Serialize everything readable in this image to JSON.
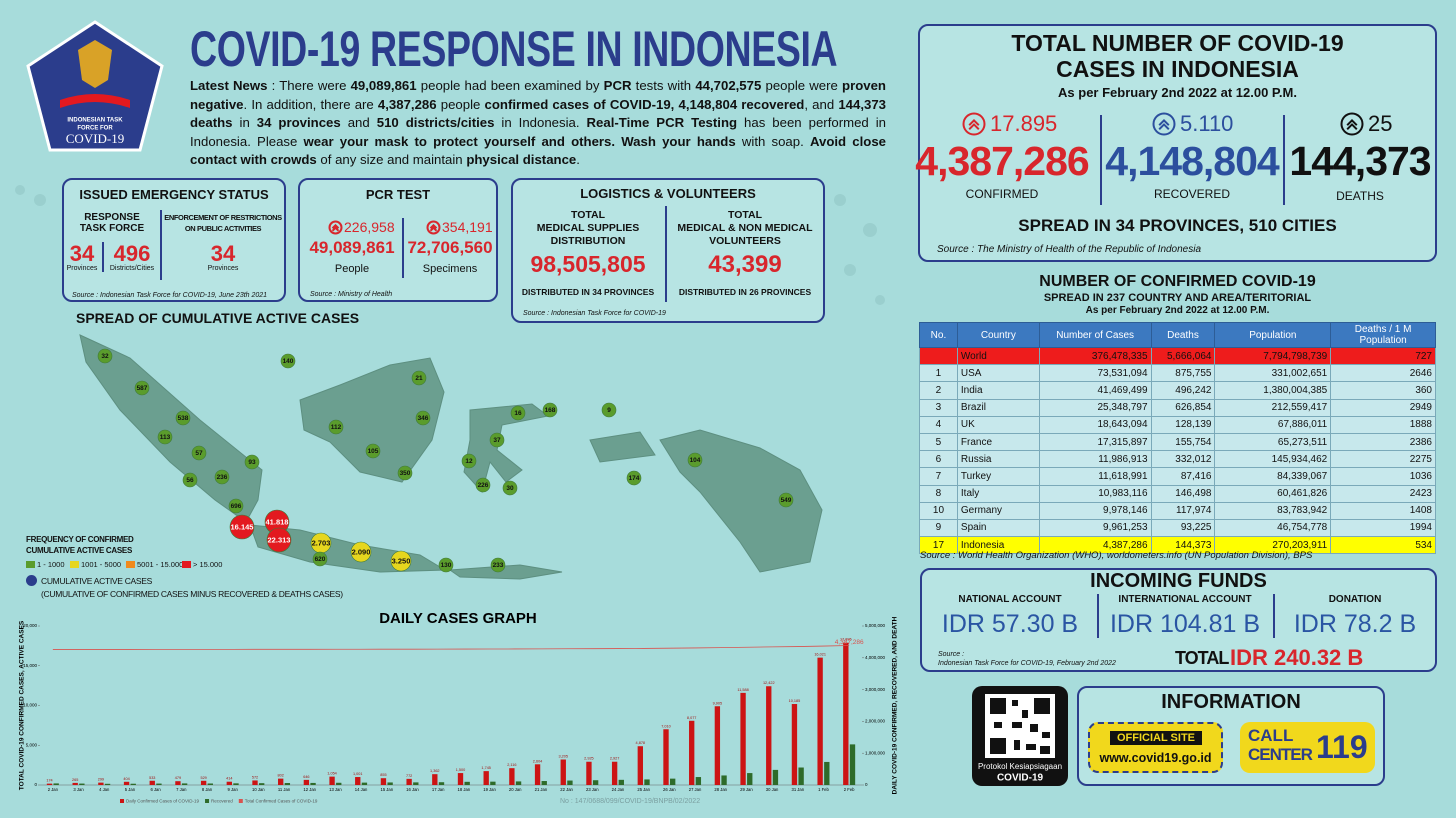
{
  "header": {
    "logo_lines": [
      "INDONESIAN TASK",
      "FORCE FOR",
      "COVID-19"
    ],
    "title": "COVID-19 RESPONSE IN INDONESIA",
    "news": [
      {
        "text": "Latest News",
        "bold": true
      },
      {
        "text": " : There were "
      },
      {
        "text": "49,089,861",
        "bold": true
      },
      {
        "text": " people had been examined by "
      },
      {
        "text": "PCR",
        "bold": true
      },
      {
        "text": " tests with "
      },
      {
        "text": "44,702,575",
        "bold": true
      },
      {
        "text": " people were "
      },
      {
        "text": "proven negative",
        "bold": true
      },
      {
        "text": ". In addition, there are "
      },
      {
        "text": "4,387,286",
        "bold": true
      },
      {
        "text": " people "
      },
      {
        "text": "confirmed cases of COVID-19, 4,148,804 recovered",
        "bold": true
      },
      {
        "text": ", and "
      },
      {
        "text": "144,373 deaths",
        "bold": true
      },
      {
        "text": " in "
      },
      {
        "text": "34 provinces",
        "bold": true
      },
      {
        "text": " and "
      },
      {
        "text": "510 districts/cities",
        "bold": true
      },
      {
        "text": " in Indonesia. "
      },
      {
        "text": "Real-Time PCR Testing",
        "bold": true
      },
      {
        "text": " has been performed in Indonesia. Please "
      },
      {
        "text": "wear your mask to protect yourself and others. Wash your hands",
        "bold": true
      },
      {
        "text": " with soap. "
      },
      {
        "text": "Avoid close contact with crowds",
        "bold": true
      },
      {
        "text": " of any size and maintain "
      },
      {
        "text": "physical distance",
        "bold": true
      },
      {
        "text": "."
      }
    ]
  },
  "emergency": {
    "title": "ISSUED EMERGENCY STATUS",
    "response_title": [
      "RESPONSE",
      "TASK FORCE"
    ],
    "response_items": [
      {
        "value": "34",
        "label": "Provinces"
      },
      {
        "value": "496",
        "label": "Districts/Cities"
      }
    ],
    "restriction_title": [
      "ENFORCEMENT OF RESTRICTIONS",
      "ON PUBLIC ACTIVITIES"
    ],
    "restriction_item": {
      "value": "34",
      "label": "Provinces"
    },
    "source": "Source : Indonesian Task Force for COVID-19, June 23th 2021"
  },
  "pcr": {
    "title": "PCR TEST",
    "items": [
      {
        "delta": "226,958",
        "value": "49,089,861",
        "label": "People"
      },
      {
        "delta": "354,191",
        "value": "72,706,560",
        "label": "Specimens"
      }
    ],
    "source": "Source : Ministry of Health"
  },
  "logistics": {
    "title": "LOGISTICS & VOLUNTEERS",
    "items": [
      {
        "title": [
          "TOTAL",
          "MEDICAL SUPPLIES",
          "DISTRIBUTION"
        ],
        "value": "98,505,805",
        "note": "DISTRIBUTED IN 34 PROVINCES"
      },
      {
        "title": [
          "TOTAL",
          "MEDICAL & NON MEDICAL",
          "VOLUNTEERS"
        ],
        "value": "43,399",
        "note": "DISTRIBUTED IN 26 PROVINCES"
      }
    ],
    "source": "Source : Indonesian Task Force for COVID-19"
  },
  "total": {
    "title": [
      "TOTAL NUMBER OF COVID-19",
      "CASES IN INDONESIA"
    ],
    "subtitle": "As per February 2nd 2022 at 12.00 P.M.",
    "stats": [
      {
        "delta": "17.895",
        "value": "4,387,286",
        "label": "CONFIRMED",
        "color": "#d8262c"
      },
      {
        "delta": "5.110",
        "value": "4,148,804",
        "label": "RECOVERED",
        "color": "#2c4f9e"
      },
      {
        "delta": "25",
        "value": "144,373",
        "label": "DEATHS",
        "color": "#111111"
      }
    ],
    "spread": "SPREAD IN 34 PROVINCES, 510 CITIES",
    "source": "Source : The Ministry of Health of the Republic of Indonesia"
  },
  "world_table": {
    "title": "NUMBER OF CONFIRMED COVID-19",
    "subtitle": "SPREAD IN 237 COUNTRY AND AREA/TERITORIAL",
    "date": "As per February 2nd 2022 at 12.00 P.M.",
    "columns": [
      "No.",
      "Country",
      "Number of Cases",
      "Deaths",
      "Population",
      "Deaths / 1 M Population"
    ],
    "rows": [
      {
        "cells": [
          null,
          "World",
          "376,478,335",
          "5,666,064",
          "7,794,798,739",
          "727"
        ],
        "color": "#ee1c1c"
      },
      {
        "cells": [
          "1",
          "USA",
          "73,531,094",
          "875,755",
          "331,002,651",
          "2646"
        ]
      },
      {
        "cells": [
          "2",
          "India",
          "41,469,499",
          "496,242",
          "1,380,004,385",
          "360"
        ]
      },
      {
        "cells": [
          "3",
          "Brazil",
          "25,348,797",
          "626,854",
          "212,559,417",
          "2949"
        ]
      },
      {
        "cells": [
          "4",
          "UK",
          "18,643,094",
          "128,139",
          "67,886,011",
          "1888"
        ]
      },
      {
        "cells": [
          "5",
          "France",
          "17,315,897",
          "155,754",
          "65,273,511",
          "2386"
        ]
      },
      {
        "cells": [
          "6",
          "Russia",
          "11,986,913",
          "332,012",
          "145,934,462",
          "2275"
        ]
      },
      {
        "cells": [
          "7",
          "Turkey",
          "11,618,991",
          "87,416",
          "84,339,067",
          "1036"
        ]
      },
      {
        "cells": [
          "8",
          "Italy",
          "10,983,116",
          "146,498",
          "60,461,826",
          "2423"
        ]
      },
      {
        "cells": [
          "10",
          "Germany",
          "9,978,146",
          "117,974",
          "83,783,942",
          "1408"
        ]
      },
      {
        "cells": [
          "9",
          "Spain",
          "9,961,253",
          "93,225",
          "46,754,778",
          "1994"
        ]
      },
      {
        "cells": [
          "17",
          "Indonesia",
          "4,387,286",
          "144,373",
          "270,203,911",
          "534"
        ],
        "color": "#ffff00"
      }
    ],
    "source": "Source : World Health Organization (WHO), worldometers.info (UN Population Division), BPS"
  },
  "funds": {
    "title": "INCOMING FUNDS",
    "accounts": [
      {
        "label": "NATIONAL ACCOUNT",
        "value": "IDR 57.30 B"
      },
      {
        "label": "INTERNATIONAL ACCOUNT",
        "value": "IDR 104.81 B"
      },
      {
        "label": "DONATION",
        "value": "IDR 78.2 B"
      }
    ],
    "source": [
      "Source :",
      "Indonesian Task Force for COVID-19, February 2nd 2022"
    ],
    "total_label": "TOTAL",
    "total_value": "IDR 240.32 B"
  },
  "qr": {
    "lines": [
      "Protokol Kesiapsiagaan",
      "COVID-19"
    ]
  },
  "information": {
    "title": "INFORMATION",
    "site_label": "OFFICIAL SITE",
    "site_url": "www.covid19.go.id",
    "call_lines": [
      "CALL",
      "CENTER"
    ],
    "call_number": "119"
  },
  "map": {
    "title": "SPREAD OF CUMULATIVE ACTIVE CASES",
    "legend_title": [
      "FREQUENCY OF CONFIRMED",
      "CUMULATIVE ACTIVE CASES"
    ],
    "legend": [
      {
        "label": "1 - 1000",
        "color": "#5a9c2c"
      },
      {
        "label": "1001 - 5000",
        "color": "#e6d61e"
      },
      {
        "label": "5001 - 15.000",
        "color": "#f08a1c"
      },
      {
        "label": "> 15.000",
        "color": "#e3191f"
      }
    ],
    "legend_note": [
      "CUMULATIVE ACTIVE CASES",
      "(CUMULATIVE OF CONFIRMED CASES MINUS RECOVERED & DEATHS CASES)"
    ],
    "note_color": "#2b3d8c",
    "bubbles": [
      {
        "label": "32",
        "level": 0
      },
      {
        "label": "587",
        "level": 0
      },
      {
        "label": "538",
        "level": 0
      },
      {
        "label": "113",
        "level": 0
      },
      {
        "label": "57",
        "level": 0
      },
      {
        "label": "56",
        "level": 0
      },
      {
        "label": "236",
        "level": 0
      },
      {
        "label": "93",
        "level": 0
      },
      {
        "label": "696",
        "level": 0
      },
      {
        "label": "16.145",
        "level": 3
      },
      {
        "label": "41.818",
        "level": 3
      },
      {
        "label": "22.313",
        "level": 3
      },
      {
        "label": "2.703",
        "level": 1
      },
      {
        "label": "620",
        "level": 0
      },
      {
        "label": "2.090",
        "level": 1
      },
      {
        "label": "3.250",
        "level": 1
      },
      {
        "label": "130",
        "level": 0
      },
      {
        "label": "233",
        "level": 0
      },
      {
        "label": "140",
        "level": 0
      },
      {
        "label": "21",
        "level": 0
      },
      {
        "label": "112",
        "level": 0
      },
      {
        "label": "346",
        "level": 0
      },
      {
        "label": "105",
        "level": 0
      },
      {
        "label": "350",
        "level": 0
      },
      {
        "label": "16",
        "level": 0
      },
      {
        "label": "168",
        "level": 0
      },
      {
        "label": "9",
        "level": 0
      },
      {
        "label": "37",
        "level": 0
      },
      {
        "label": "12",
        "level": 0
      },
      {
        "label": "226",
        "level": 0
      },
      {
        "label": "30",
        "level": 0
      },
      {
        "label": "174",
        "level": 0
      },
      {
        "label": "104",
        "level": 0
      },
      {
        "label": "549",
        "level": 0
      }
    ]
  },
  "footer": "No : 147/0688/099/COVID-19/BNPB/02/2022",
  "chart_data": {
    "type": "bar",
    "title": "DAILY CASES GRAPH",
    "y_label": "TOTAL COVID-19 CONFIRMED CASES, ACTIVE CASES",
    "y2_label": "DAILY COVID-19 CONFIRMED, RECOVERED, AND DEATH",
    "categories": [
      "2 Jan",
      "3 Jan",
      "4 Jan",
      "5 Jan",
      "6 Jan",
      "7 Jan",
      "8 Jan",
      "9 Jan",
      "10 Jan",
      "11 Jan",
      "12 Jan",
      "13 Jan",
      "14 Jan",
      "15 Jan",
      "16 Jan",
      "17 Jan",
      "18 Jan",
      "19 Jan",
      "20 Jan",
      "21 Jan",
      "22 Jan",
      "23 Jan",
      "24 Jan",
      "25 Jan",
      "26 Jan",
      "27 Jan",
      "28 Jan",
      "29 Jan",
      "30 Jan",
      "31 Jan",
      "1 Feb",
      "2 Feb"
    ],
    "ylim": [
      0,
      20000
    ],
    "yticks": [
      0,
      {
        "value": 5000,
        "label": "5,000"
      },
      {
        "value": 10000,
        "label": "10,000"
      },
      {
        "value": 15000,
        "label": "15,000"
      },
      {
        "value": 20000,
        "label": "20,000"
      }
    ],
    "y2lim": [
      0,
      5000000
    ],
    "y2ticks": [
      0,
      {
        "value": 1000000,
        "label": "1,000,000"
      },
      {
        "value": 2000000,
        "label": "2,000,000"
      },
      {
        "value": 3000000,
        "label": "3,000,000"
      },
      {
        "value": 4000000,
        "label": "4,000,000"
      },
      {
        "value": 5000000,
        "label": "5,000,000"
      }
    ],
    "series": [
      {
        "name": "Daily Confirmed Cases of COVID-19",
        "color": "#cc1414",
        "values": [
          174,
          265,
          299,
          404,
          533,
          479,
          529,
          414,
          572,
          802,
          646,
          1054,
          1001,
          855,
          772,
          1362,
          1500,
          1745,
          2116,
          2604,
          3205,
          2925,
          2927,
          4878,
          7010,
          8077,
          9905,
          11588,
          12422,
          10185,
          16021,
          17895
        ],
        "value_labels": [
          "174",
          "265",
          "299",
          "404",
          "533",
          "479",
          "529",
          "414",
          "572",
          "802",
          "646",
          "1,054",
          "1,001",
          "855",
          "772",
          "1,362",
          "1,500",
          "1,745",
          "2,116",
          "2,604",
          "3,205",
          "2,925",
          "2,927",
          "4,878",
          "7,010",
          "8,077",
          "9,905",
          "11,588",
          "12,422",
          "10,185",
          "16,021",
          "17,895"
        ]
      },
      {
        "name": "Recovered",
        "color": "#2e6b2a",
        "values": [
          200,
          180,
          150,
          160,
          180,
          200,
          190,
          210,
          230,
          250,
          260,
          280,
          300,
          320,
          330,
          350,
          400,
          420,
          450,
          500,
          560,
          600,
          650,
          700,
          800,
          1000,
          1200,
          1500,
          1900,
          2200,
          2900,
          5110
        ]
      },
      {
        "name": "Total Confirmed Cases of COVID-19",
        "color": "#d9534f",
        "axis": "y2",
        "values": [
          4262720,
          4262985,
          4263284,
          4263688,
          4264221,
          4264700,
          4265229,
          4265643,
          4266215,
          4267017,
          4267663,
          4268717,
          4269718,
          4270573,
          4271345,
          4272707,
          4274207,
          4275952,
          4278068,
          4280672,
          4283877,
          4286802,
          4289729,
          4294607,
          4301617,
          4309694,
          4319599,
          4331187,
          4343609,
          4353794,
          4369815,
          4387286
        ]
      }
    ],
    "annotation": "4,387,286"
  }
}
